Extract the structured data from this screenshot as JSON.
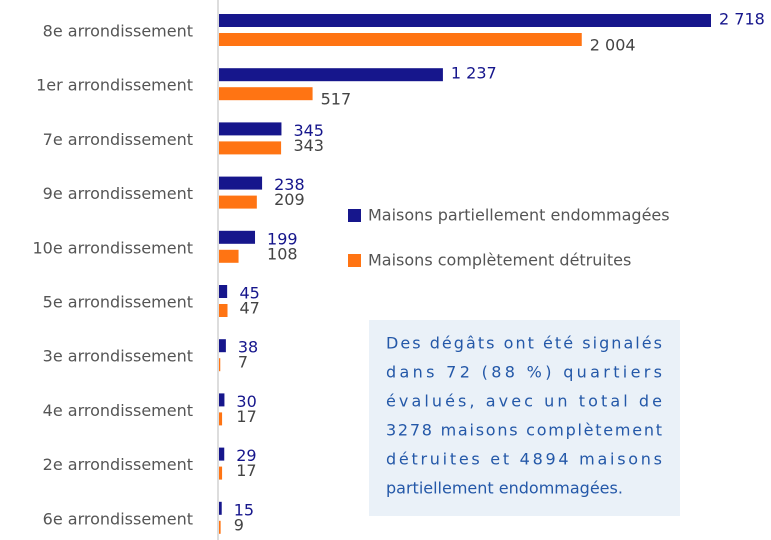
{
  "chart_data": {
    "type": "bar",
    "orientation": "horizontal",
    "categories": [
      "8e arrondissement",
      "1er arrondissement",
      "7e arrondissement",
      "9e arrondissement",
      "10e arrondissement",
      "5e arrondissement",
      "3e arrondissement",
      "4e arrondissement",
      "2e arrondissement",
      "6e arrondissement"
    ],
    "series": [
      {
        "name": "Maisons partiellement endommagées",
        "color": "#16168c",
        "values": [
          2718,
          1237,
          345,
          238,
          199,
          45,
          38,
          30,
          29,
          15
        ],
        "value_labels": [
          "2 718",
          "1 237",
          "345",
          "238",
          "199",
          "45",
          "38",
          "30",
          "29",
          "15"
        ]
      },
      {
        "name": "Maisons complètement détruites",
        "color": "#ff7413",
        "values": [
          2004,
          517,
          343,
          209,
          108,
          47,
          7,
          17,
          17,
          9
        ],
        "value_labels": [
          "2 004",
          "517",
          "343",
          "209",
          "108",
          "47",
          "7",
          "17",
          "17",
          "9"
        ]
      }
    ],
    "legend": "right",
    "annotation": [
      "Des dégâts ont été signalés",
      "dans 72 (88 %) quartiers",
      "évalués, avec un total de",
      "3278 maisons complètement",
      "détruites et 4894 maisons",
      "partiellement endommagées."
    ]
  }
}
